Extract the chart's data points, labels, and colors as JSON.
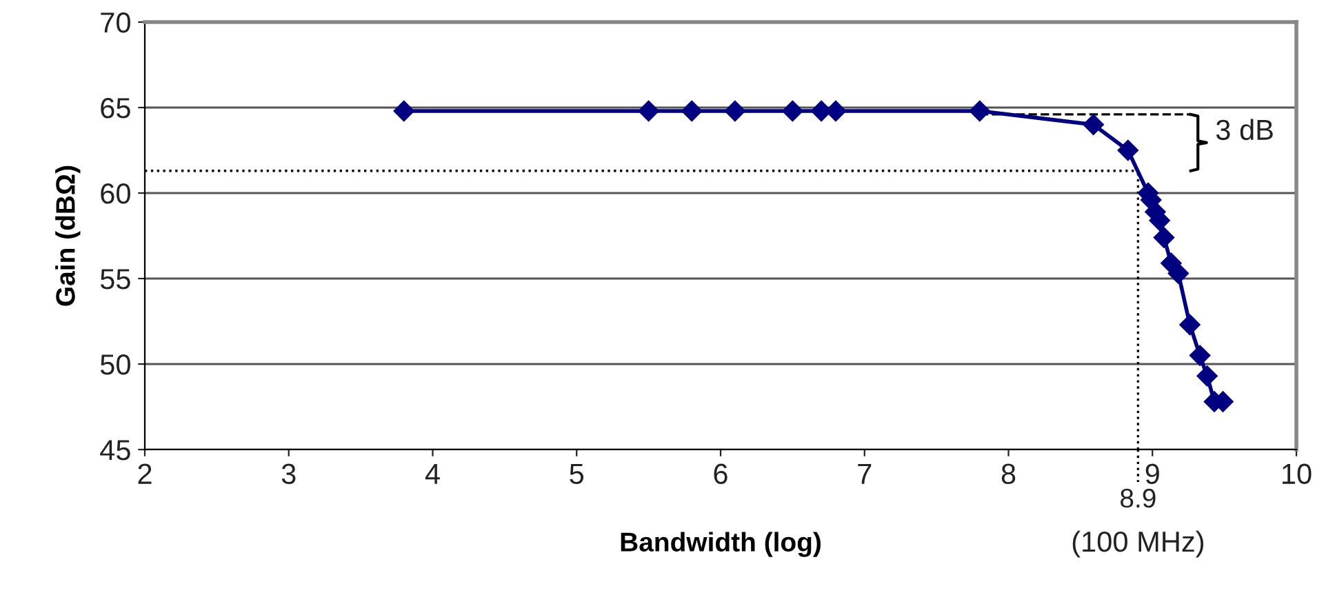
{
  "chart_data": {
    "type": "line",
    "xlabel": "Bandwidth (log)",
    "ylabel": "Gain (dBΩ)",
    "x": [
      3.8,
      5.5,
      5.8,
      6.1,
      6.5,
      6.7,
      6.8,
      7.8,
      8.59,
      8.83,
      8.97,
      8.99,
      9.02,
      9.05,
      9.08,
      9.13,
      9.18,
      9.26,
      9.33,
      9.38,
      9.43,
      9.49
    ],
    "series": [
      {
        "color": "#000080",
        "values": [
          64.8,
          64.8,
          64.8,
          64.8,
          64.8,
          64.8,
          64.8,
          64.8,
          64.0,
          62.5,
          60.0,
          59.6,
          58.9,
          58.4,
          57.4,
          55.9,
          55.3,
          52.3,
          50.5,
          49.3,
          47.8,
          47.8
        ]
      }
    ],
    "marker": "diamond",
    "line_style": "solid",
    "grid": "y",
    "xlim": [
      2,
      10
    ],
    "xticks": [
      2,
      3,
      4,
      5,
      6,
      7,
      8,
      9,
      10
    ],
    "ylim": [
      45,
      70
    ],
    "yticks": [
      45,
      50,
      55,
      60,
      65,
      70
    ],
    "ref_lines": [
      {
        "axis": "y",
        "value": 64.6,
        "line_style": "dashed",
        "color": "#000000"
      },
      {
        "axis": "y",
        "value": 61.3,
        "line_style": "dotted",
        "color": "#000000"
      },
      {
        "axis": "x",
        "value": 8.9,
        "label": "8.9",
        "line_style": "dotted",
        "color": "#000000"
      }
    ],
    "annotations": [
      "3 dB",
      "(100 MHz)"
    ]
  }
}
